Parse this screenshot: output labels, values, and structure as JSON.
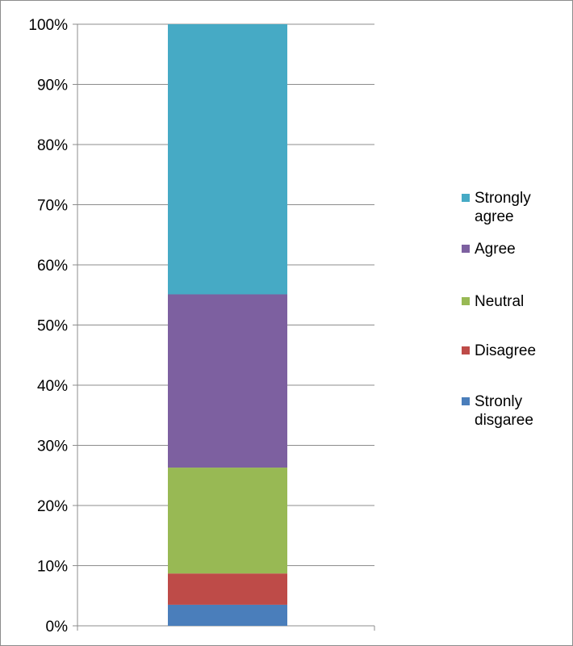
{
  "chart_data": {
    "type": "bar",
    "stacked": true,
    "percent_stacked": true,
    "categories": [
      ""
    ],
    "series": [
      {
        "name": "Stronly disgaree",
        "values": [
          3.5
        ],
        "color": "#4a7ebb"
      },
      {
        "name": "Disagree",
        "values": [
          5.2
        ],
        "color": "#be4b48"
      },
      {
        "name": "Neutral",
        "values": [
          17.6
        ],
        "color": "#98b954"
      },
      {
        "name": "Agree",
        "values": [
          28.8
        ],
        "color": "#7d60a0"
      },
      {
        "name": "Strongly agree",
        "values": [
          44.9
        ],
        "color": "#46aac5"
      }
    ],
    "legend": {
      "position": "right",
      "entries": [
        {
          "lines": [
            "Strongly",
            "agree"
          ],
          "color": "#46aac5"
        },
        {
          "lines": [
            "Agree"
          ],
          "color": "#7d60a0"
        },
        {
          "lines": [
            "Neutral"
          ],
          "color": "#98b954"
        },
        {
          "lines": [
            "Disagree"
          ],
          "color": "#be4b48"
        },
        {
          "lines": [
            "Stronly",
            "disgaree"
          ],
          "color": "#4a7ebb"
        }
      ]
    },
    "y_ticks": [
      "0%",
      "10%",
      "20%",
      "30%",
      "40%",
      "50%",
      "60%",
      "70%",
      "80%",
      "90%",
      "100%"
    ],
    "ylim": [
      0,
      100
    ],
    "grid": true,
    "title": "",
    "xlabel": "",
    "ylabel": ""
  }
}
